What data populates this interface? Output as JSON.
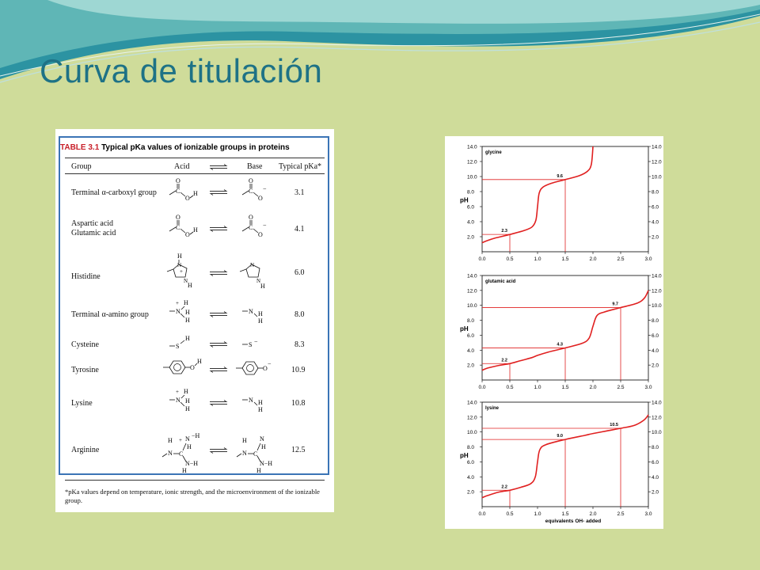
{
  "slide": {
    "title": "Curva de titulación",
    "colors": {
      "background": "#cfdc9a",
      "title": "#1e7286",
      "wave_dark": "#2b8ea0",
      "wave_light": "#8fd0d2",
      "table_border": "#3b74b6",
      "table_label": "#c8202a",
      "curve": "#e02020"
    }
  },
  "table": {
    "label": "TABLE 3.1",
    "title": "Typical pKa values of ionizable groups in proteins",
    "headers": {
      "group": "Group",
      "acid": "Acid",
      "base": "Base",
      "pka": "Typical pKa*"
    },
    "rows": [
      {
        "group": "Terminal α-carboxyl group",
        "group2": "",
        "pka": "3.1",
        "acid_icon": "carboxylic-acid-structure",
        "base_icon": "carboxylate-structure"
      },
      {
        "group": "Aspartic acid",
        "group2": "Glutamic acid",
        "pka": "4.1",
        "acid_icon": "carboxylic-acid-structure",
        "base_icon": "carboxylate-structure"
      },
      {
        "group": "Histidine",
        "group2": "",
        "pka": "6.0",
        "acid_icon": "imidazolium-structure",
        "base_icon": "imidazole-structure"
      },
      {
        "group": "Terminal α-amino group",
        "group2": "",
        "pka": "8.0",
        "acid_icon": "ammonium-structure",
        "base_icon": "amine-structure"
      },
      {
        "group": "Cysteine",
        "group2": "",
        "pka": "8.3",
        "acid_icon": "thiol-structure",
        "base_icon": "thiolate-structure"
      },
      {
        "group": "Tyrosine",
        "group2": "",
        "pka": "10.9",
        "acid_icon": "phenol-structure",
        "base_icon": "phenolate-structure"
      },
      {
        "group": "Lysine",
        "group2": "",
        "pka": "10.8",
        "acid_icon": "ammonium-structure",
        "base_icon": "amine-structure"
      },
      {
        "group": "Arginine",
        "group2": "",
        "pka": "12.5",
        "acid_icon": "guanidinium-structure",
        "base_icon": "guanidine-structure"
      }
    ],
    "structure_text": {
      "O": "O",
      "C": "C",
      "H": "H",
      "N": "N",
      "S": "S",
      "minus": "−",
      "plus": "+"
    },
    "footnote": "*pKa values depend on temperature, ionic strength, and the microenvironment of the ionizable group."
  },
  "chart_data": [
    {
      "type": "line",
      "title": "glycine",
      "xlabel": "",
      "ylabel": "pH",
      "xlim": [
        0,
        3
      ],
      "ylim": [
        0,
        14
      ],
      "xticks": [
        "0.0",
        "0.5",
        "1.0",
        "1.5",
        "2.0",
        "2.5",
        "3.0"
      ],
      "yticks": [
        "2.0",
        "4.0",
        "6.0",
        "8.0",
        "10.0",
        "12.0",
        "14.0"
      ],
      "grid": false,
      "pka_points": [
        {
          "x": 0.5,
          "y": 2.3,
          "label": "2.3"
        },
        {
          "x": 1.5,
          "y": 9.6,
          "label": "9.6"
        }
      ],
      "series": [
        {
          "values": [
            [
              0.0,
              1.2
            ],
            [
              0.1,
              1.5
            ],
            [
              0.25,
              1.85
            ],
            [
              0.5,
              2.3
            ],
            [
              0.75,
              2.8
            ],
            [
              0.9,
              3.3
            ],
            [
              0.97,
              4.2
            ],
            [
              1.0,
              6.0
            ],
            [
              1.03,
              7.8
            ],
            [
              1.1,
              8.6
            ],
            [
              1.25,
              9.1
            ],
            [
              1.5,
              9.6
            ],
            [
              1.75,
              10.1
            ],
            [
              1.9,
              10.7
            ],
            [
              1.97,
              11.6
            ],
            [
              2.0,
              14.0
            ]
          ]
        }
      ]
    },
    {
      "type": "line",
      "title": "glutamic acid",
      "xlabel": "",
      "ylabel": "pH",
      "xlim": [
        0,
        3
      ],
      "ylim": [
        0,
        14
      ],
      "xticks": [
        "0.0",
        "0.5",
        "1.0",
        "1.5",
        "2.0",
        "2.5",
        "3.0"
      ],
      "yticks": [
        "2.0",
        "4.0",
        "6.0",
        "8.0",
        "10.0",
        "12.0",
        "14.0"
      ],
      "grid": false,
      "pka_points": [
        {
          "x": 0.5,
          "y": 2.2,
          "label": "2.2"
        },
        {
          "x": 1.5,
          "y": 4.3,
          "label": "4.3"
        },
        {
          "x": 2.5,
          "y": 9.7,
          "label": "9.7"
        }
      ],
      "series": [
        {
          "values": [
            [
              0.0,
              1.3
            ],
            [
              0.1,
              1.6
            ],
            [
              0.3,
              1.95
            ],
            [
              0.5,
              2.2
            ],
            [
              0.7,
              2.6
            ],
            [
              0.9,
              3.0
            ],
            [
              1.0,
              3.3
            ],
            [
              1.2,
              3.75
            ],
            [
              1.5,
              4.3
            ],
            [
              1.8,
              4.9
            ],
            [
              1.93,
              5.6
            ],
            [
              2.0,
              7.2
            ],
            [
              2.07,
              8.6
            ],
            [
              2.2,
              9.1
            ],
            [
              2.5,
              9.7
            ],
            [
              2.8,
              10.3
            ],
            [
              2.93,
              11.0
            ],
            [
              3.0,
              12.0
            ]
          ]
        }
      ]
    },
    {
      "type": "line",
      "title": "lysine",
      "xlabel": "equivalents OH- added",
      "ylabel": "pH",
      "xlim": [
        0,
        3
      ],
      "ylim": [
        0,
        14
      ],
      "xticks": [
        "0.0",
        "0.5",
        "1.0",
        "1.5",
        "2.0",
        "2.5",
        "3.0"
      ],
      "yticks": [
        "2.0",
        "4.0",
        "6.0",
        "8.0",
        "10.0",
        "12.0",
        "14.0"
      ],
      "grid": false,
      "pka_points": [
        {
          "x": 0.5,
          "y": 2.2,
          "label": "2.2"
        },
        {
          "x": 1.5,
          "y": 9.0,
          "label": "9.0"
        },
        {
          "x": 2.5,
          "y": 10.5,
          "label": "10.5"
        }
      ],
      "series": [
        {
          "values": [
            [
              0.0,
              1.2
            ],
            [
              0.1,
              1.5
            ],
            [
              0.3,
              1.95
            ],
            [
              0.5,
              2.2
            ],
            [
              0.7,
              2.6
            ],
            [
              0.88,
              3.1
            ],
            [
              0.96,
              4.0
            ],
            [
              1.0,
              6.0
            ],
            [
              1.04,
              7.6
            ],
            [
              1.15,
              8.3
            ],
            [
              1.5,
              9.0
            ],
            [
              1.85,
              9.55
            ],
            [
              2.0,
              9.8
            ],
            [
              2.25,
              10.15
            ],
            [
              2.5,
              10.5
            ],
            [
              2.75,
              10.9
            ],
            [
              2.92,
              11.6
            ],
            [
              3.0,
              12.3
            ]
          ]
        }
      ]
    }
  ]
}
